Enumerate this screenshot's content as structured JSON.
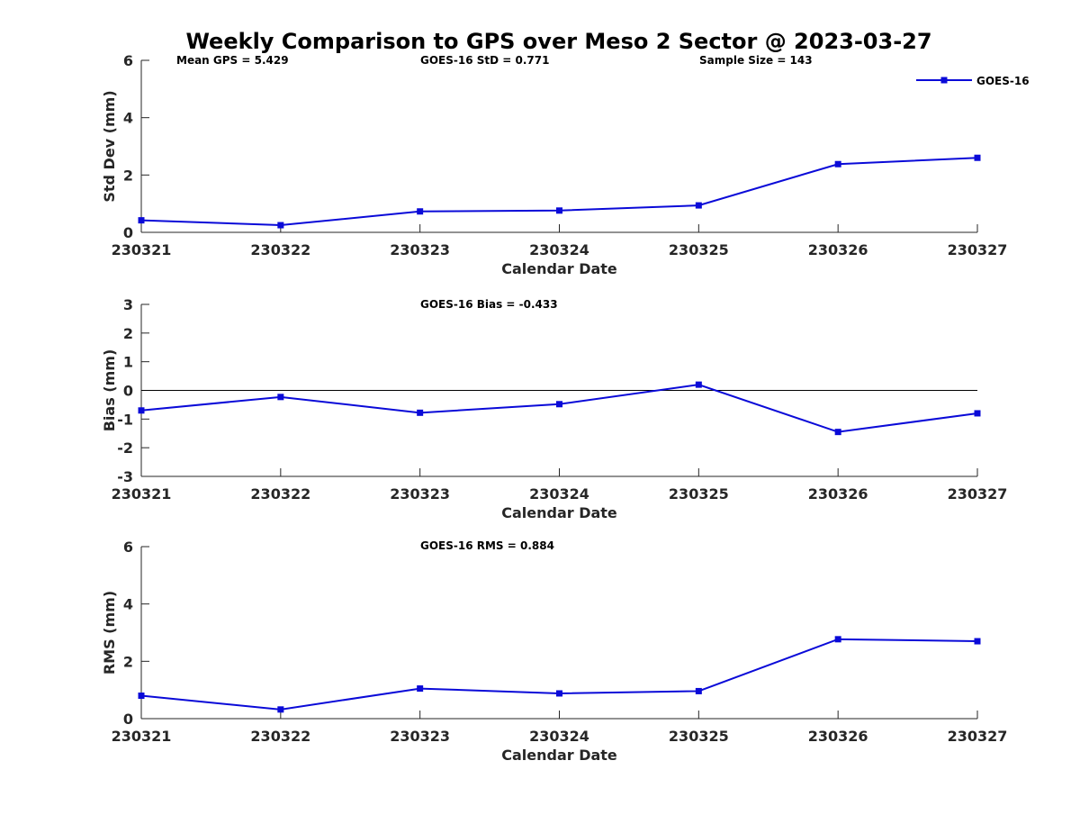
{
  "title": "Weekly Comparison to GPS over Meso 2 Sector @ 2023-03-27",
  "colors": {
    "series": "#0a0ad8",
    "axis": "#262626",
    "zero_line": "#000000"
  },
  "legend": {
    "label": "GOES-16",
    "placement": "top-right"
  },
  "chart_data": [
    {
      "type": "line",
      "title": "Weekly Comparison to GPS over Meso 2 Sector @ 2023-03-27",
      "xlabel": "Calendar Date",
      "ylabel": "Std Dev (mm)",
      "categories": [
        "230321",
        "230322",
        "230323",
        "230324",
        "230325",
        "230326",
        "230327"
      ],
      "ylim": [
        0,
        6
      ],
      "yticks": [
        0,
        2,
        4,
        6
      ],
      "zero_line": false,
      "annotations": [
        "Mean GPS = 5.429",
        "GOES-16 StD = 0.771",
        "Sample Size = 143"
      ],
      "series": [
        {
          "name": "GOES-16",
          "values": [
            0.42,
            0.25,
            0.73,
            0.76,
            0.94,
            2.38,
            2.6
          ]
        }
      ]
    },
    {
      "type": "line",
      "xlabel": "Calendar Date",
      "ylabel": "Bias (mm)",
      "categories": [
        "230321",
        "230322",
        "230323",
        "230324",
        "230325",
        "230326",
        "230327"
      ],
      "ylim": [
        -3,
        3
      ],
      "yticks": [
        -3,
        -2,
        -1,
        0,
        1,
        2,
        3
      ],
      "zero_line": true,
      "annotations": [
        "GOES-16 Bias  = -0.433"
      ],
      "series": [
        {
          "name": "GOES-16",
          "values": [
            -0.7,
            -0.23,
            -0.78,
            -0.48,
            0.2,
            -1.45,
            -0.8
          ]
        }
      ]
    },
    {
      "type": "line",
      "xlabel": "Calendar Date",
      "ylabel": "RMS (mm)",
      "categories": [
        "230321",
        "230322",
        "230323",
        "230324",
        "230325",
        "230326",
        "230327"
      ],
      "ylim": [
        0,
        6
      ],
      "yticks": [
        0,
        2,
        4,
        6
      ],
      "zero_line": false,
      "annotations": [
        "GOES-16 RMS = 0.884"
      ],
      "series": [
        {
          "name": "GOES-16",
          "values": [
            0.8,
            0.32,
            1.05,
            0.88,
            0.96,
            2.77,
            2.7
          ]
        }
      ]
    }
  ]
}
